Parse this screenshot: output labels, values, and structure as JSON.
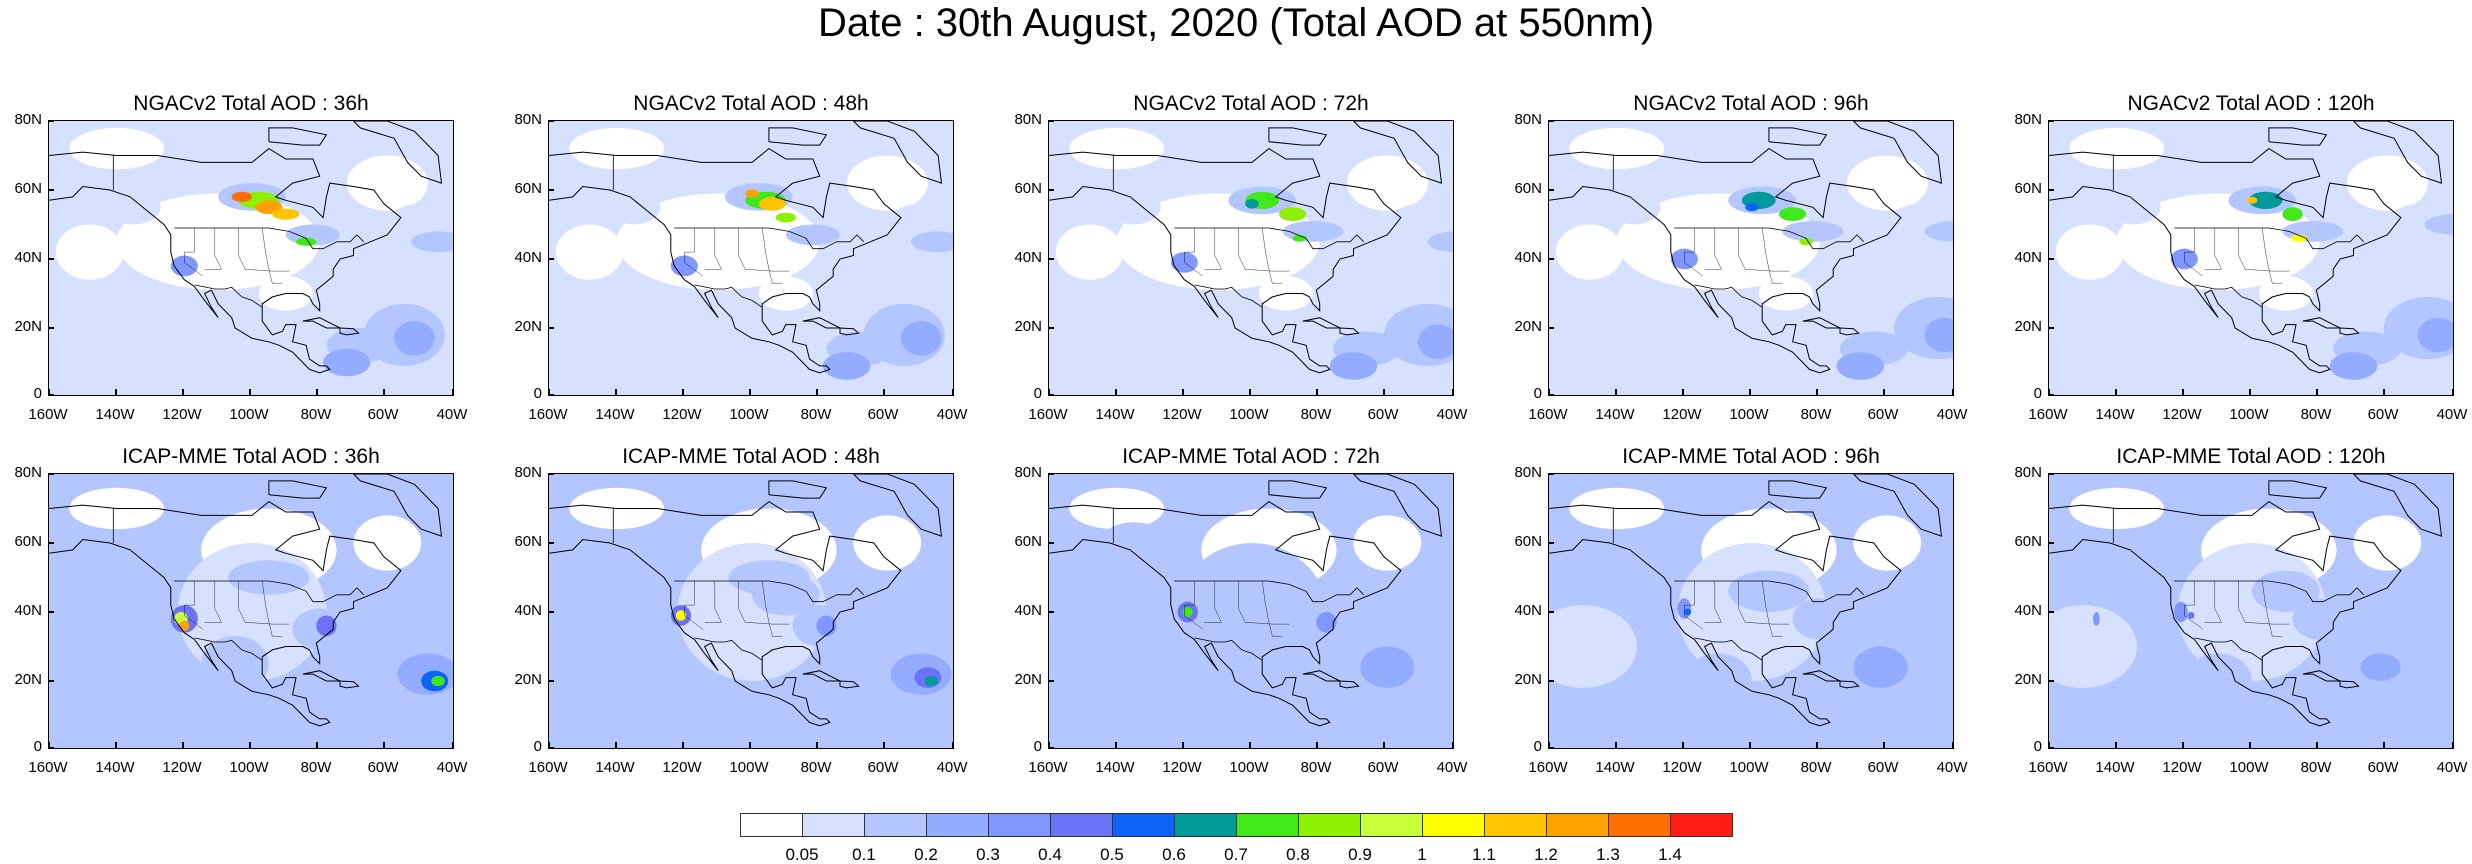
{
  "title": "Date : 30th August, 2020 (Total AOD at 550nm)",
  "rows": [
    {
      "model": "NGACv2",
      "panels": [
        {
          "title": "NGACv2 Total AOD : 36h",
          "lead": "36h"
        },
        {
          "title": "NGACv2 Total AOD : 48h",
          "lead": "48h"
        },
        {
          "title": "NGACv2 Total AOD : 72h",
          "lead": "72h"
        },
        {
          "title": "NGACv2 Total AOD : 96h",
          "lead": "96h"
        },
        {
          "title": "NGACv2 Total AOD : 120h",
          "lead": "120h"
        }
      ]
    },
    {
      "model": "ICAP-MME",
      "panels": [
        {
          "title": "ICAP-MME Total AOD : 36h",
          "lead": "36h"
        },
        {
          "title": "ICAP-MME Total AOD : 48h",
          "lead": "48h"
        },
        {
          "title": "ICAP-MME Total AOD : 72h",
          "lead": "72h"
        },
        {
          "title": "ICAP-MME Total AOD : 96h",
          "lead": "96h"
        },
        {
          "title": "ICAP-MME Total AOD : 120h",
          "lead": "120h"
        }
      ]
    }
  ],
  "lat_ticks": [
    "80N",
    "60N",
    "40N",
    "20N",
    "0"
  ],
  "lon_ticks": [
    "160W",
    "140W",
    "120W",
    "100W",
    "80W",
    "60W",
    "40W"
  ],
  "colorbar": {
    "labels": [
      "0.05",
      "0.1",
      "0.2",
      "0.3",
      "0.4",
      "0.5",
      "0.6",
      "0.7",
      "0.8",
      "0.9",
      "1",
      "1.1",
      "1.2",
      "1.3",
      "1.4"
    ],
    "colors": [
      "#ffffff",
      "#d6e0ff",
      "#b4c6ff",
      "#94acff",
      "#8097ff",
      "#6a73f5",
      "#0d63f5",
      "#009a9a",
      "#40e81a",
      "#8cf000",
      "#c8ff3a",
      "#ffff00",
      "#ffc400",
      "#ffa200",
      "#ff6e00",
      "#ff1e14"
    ]
  }
}
